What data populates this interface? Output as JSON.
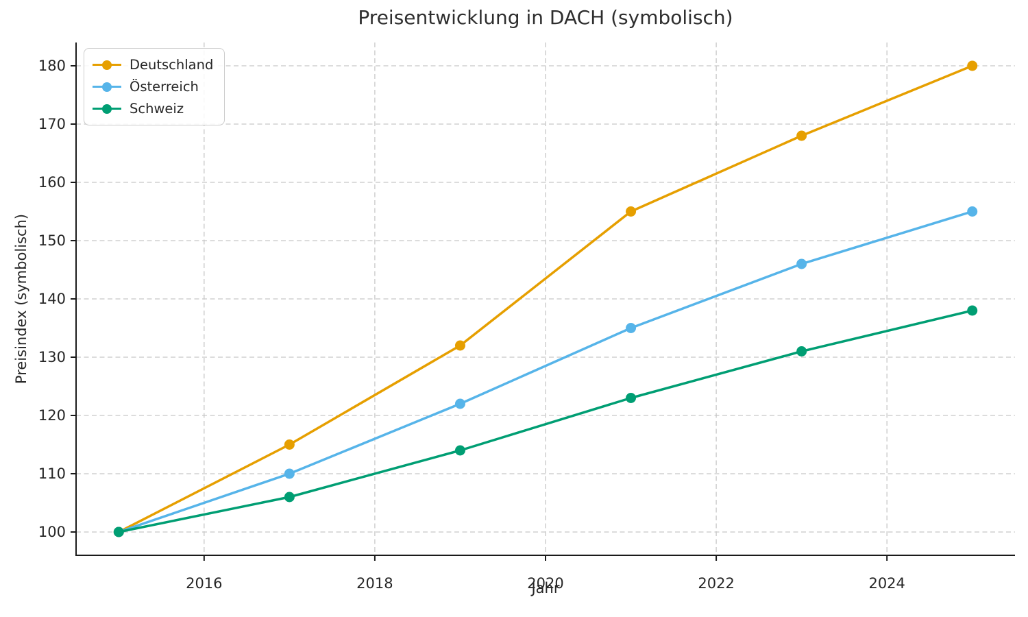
{
  "chart_data": {
    "type": "line",
    "title": "Preisentwicklung in DACH (symbolisch)",
    "xlabel": "Jahr",
    "ylabel": "Preisindex (symbolisch)",
    "x": [
      2015,
      2017,
      2019,
      2021,
      2023,
      2025
    ],
    "series": [
      {
        "name": "Deutschland",
        "color": "#E69F00",
        "values": [
          100,
          115,
          132,
          155,
          168,
          180
        ]
      },
      {
        "name": "Österreich",
        "color": "#56B4E9",
        "values": [
          100,
          110,
          122,
          135,
          146,
          155
        ]
      },
      {
        "name": "Schweiz",
        "color": "#009E73",
        "values": [
          100,
          106,
          114,
          123,
          131,
          138
        ]
      }
    ],
    "x_ticks": [
      "2016",
      "2018",
      "2020",
      "2022",
      "2024"
    ],
    "y_ticks": [
      "100",
      "110",
      "120",
      "130",
      "140",
      "150",
      "160",
      "170",
      "180"
    ],
    "xlim": [
      2014.5,
      2025.5
    ],
    "ylim": [
      96,
      184
    ],
    "grid": true,
    "grid_style": "dashed",
    "legend_position": "upper left",
    "marker": "circle",
    "grid_color": "#c7c7c7",
    "spine_color": "#1a1a1a",
    "text_color": "#262626"
  }
}
